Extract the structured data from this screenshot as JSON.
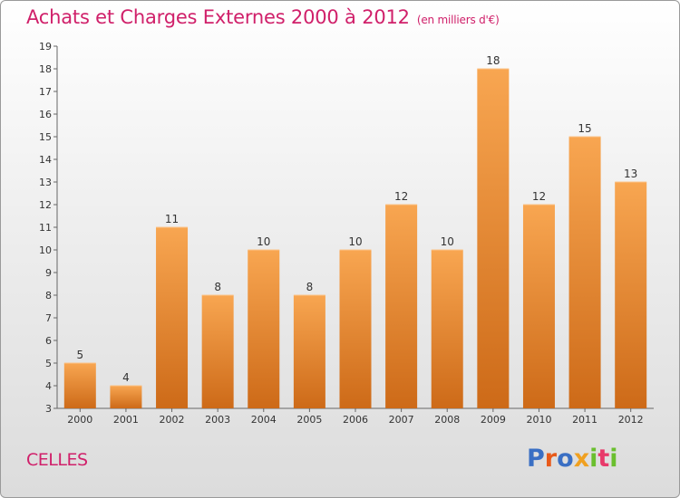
{
  "chart_data": {
    "type": "bar",
    "title": "Achats et Charges Externes 2000 à 2012",
    "subtitle": "(en milliers d'€)",
    "categories": [
      "2000",
      "2001",
      "2002",
      "2003",
      "2004",
      "2005",
      "2006",
      "2007",
      "2008",
      "2009",
      "2010",
      "2011",
      "2012"
    ],
    "values": [
      5,
      4,
      11,
      8,
      10,
      8,
      10,
      12,
      10,
      18,
      12,
      15,
      13
    ],
    "ylim": [
      3,
      19
    ],
    "yticks": [
      3,
      4,
      5,
      6,
      7,
      8,
      9,
      10,
      11,
      12,
      13,
      14,
      15,
      16,
      17,
      18,
      19
    ],
    "grid": false,
    "bar_color_top": "#f8a651",
    "bar_color_bottom": "#cd6a18",
    "text_color": "#333333"
  },
  "footer": {
    "place": "CELLES",
    "logo_text": "Proxiti",
    "logo_colors": [
      "#3a6fc4",
      "#e85a1a",
      "#3a6fc4",
      "#f0a020",
      "#6abf2e",
      "#e83a6a",
      "#6abf2e"
    ]
  },
  "colors": {
    "accent": "#d0206a"
  }
}
